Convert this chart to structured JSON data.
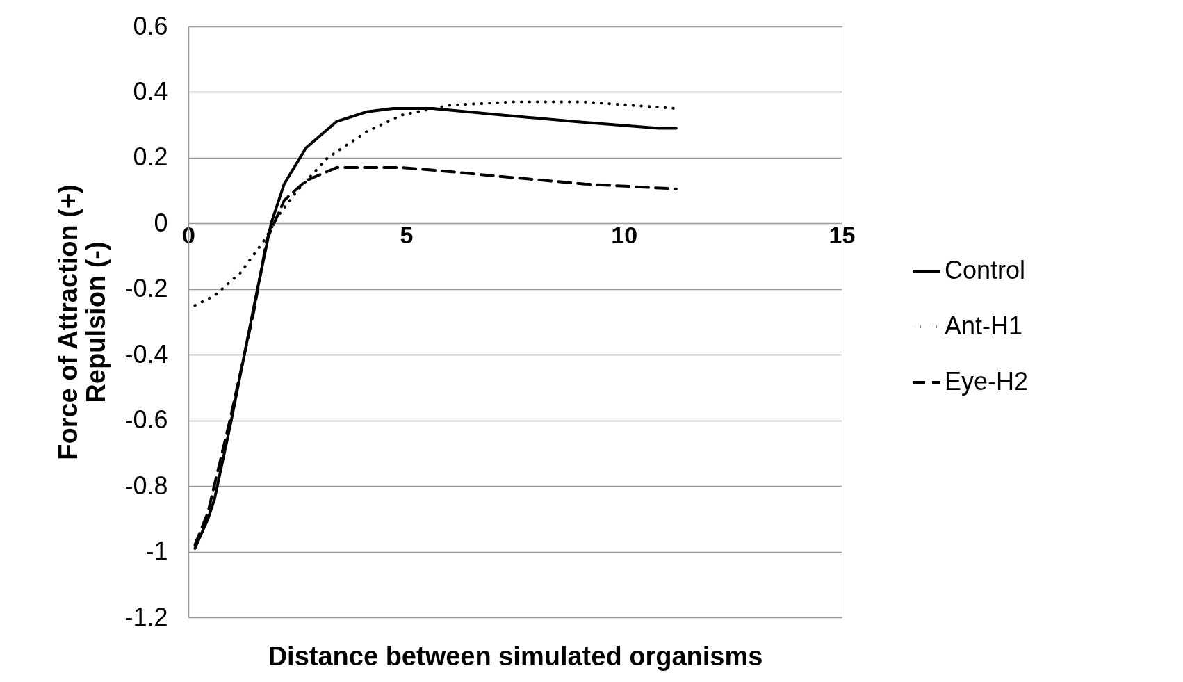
{
  "chart_data": {
    "type": "line",
    "xlabel": "Distance between simulated organisms",
    "ylabel": "Force of Attraction (+)\nRepulsion (-)",
    "xlim": [
      0,
      15
    ],
    "xticks": [
      0,
      5,
      10,
      15
    ],
    "ylim": [
      -1.2,
      0.6
    ],
    "yticks": [
      -1.2,
      -1,
      -0.8,
      -0.6,
      -0.4,
      -0.2,
      0,
      0.2,
      0.4,
      0.6
    ],
    "grid": "y",
    "legend": "right",
    "marker": "none",
    "series": [
      {
        "name": "Control",
        "color": "#000000",
        "line_style": "solid",
        "x": [
          0.15,
          0.45,
          0.6,
          0.97,
          1.57,
          1.9,
          2.2,
          2.7,
          3.4,
          4.1,
          4.7,
          5.6,
          7.2,
          8.9,
          10.8,
          11.2
        ],
        "values": [
          -0.99,
          -0.9,
          -0.84,
          -0.61,
          -0.21,
          0,
          0.12,
          0.23,
          0.31,
          0.34,
          0.35,
          0.35,
          0.33,
          0.31,
          0.29,
          0.29
        ]
      },
      {
        "name": "Ant-H1",
        "color": "#000000",
        "line_style": "dotted",
        "x": [
          0.15,
          0.6,
          1.2,
          1.75,
          2.1,
          2.5,
          3.2,
          4.1,
          4.9,
          6.0,
          7.4,
          9.1,
          11.2
        ],
        "values": [
          -0.25,
          -0.22,
          -0.15,
          -0.05,
          0.03,
          0.1,
          0.2,
          0.28,
          0.33,
          0.36,
          0.37,
          0.37,
          0.35
        ]
      },
      {
        "name": "Eye-H2",
        "color": "#000000",
        "line_style": "dashed",
        "x": [
          0.15,
          0.45,
          0.97,
          1.5,
          1.8,
          2.2,
          2.7,
          3.4,
          4.9,
          5.8,
          7.4,
          9.1,
          11.2
        ],
        "values": [
          -0.98,
          -0.88,
          -0.59,
          -0.27,
          -0.05,
          0.07,
          0.13,
          0.17,
          0.17,
          0.16,
          0.14,
          0.12,
          0.105
        ]
      }
    ]
  }
}
